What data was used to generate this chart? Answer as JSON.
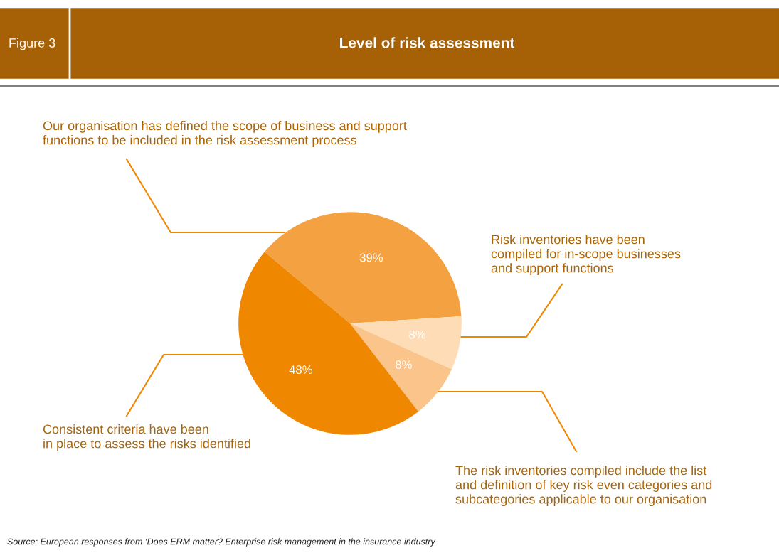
{
  "chart_data": {
    "type": "pie",
    "title": "Level of risk assessment",
    "subtitle": "Figure 3",
    "categories": [
      "Our organisation has defined the scope of business and support\nfunctions to be included in the risk assessment process",
      "Risk inventories have been\ncompiled for in-scope businesses\nand support functions",
      "The risk inventories compiled include the list\nand definition of key risk even categories and\nsubcategories applicable to our organisation",
      "Consistent criteria have been\nin place to assess the risks identified"
    ],
    "values": [
      39,
      8,
      8,
      48
    ],
    "colors": [
      "#f4a241",
      "#fddcb6",
      "#fac48a",
      "#ef8700"
    ],
    "value_labels": [
      "39%",
      "8%",
      "8%",
      "48%"
    ],
    "annotations": [
      "Source: European responses from ‘Does ERM matter? Enterprise risk management in the insurance industry"
    ]
  }
}
